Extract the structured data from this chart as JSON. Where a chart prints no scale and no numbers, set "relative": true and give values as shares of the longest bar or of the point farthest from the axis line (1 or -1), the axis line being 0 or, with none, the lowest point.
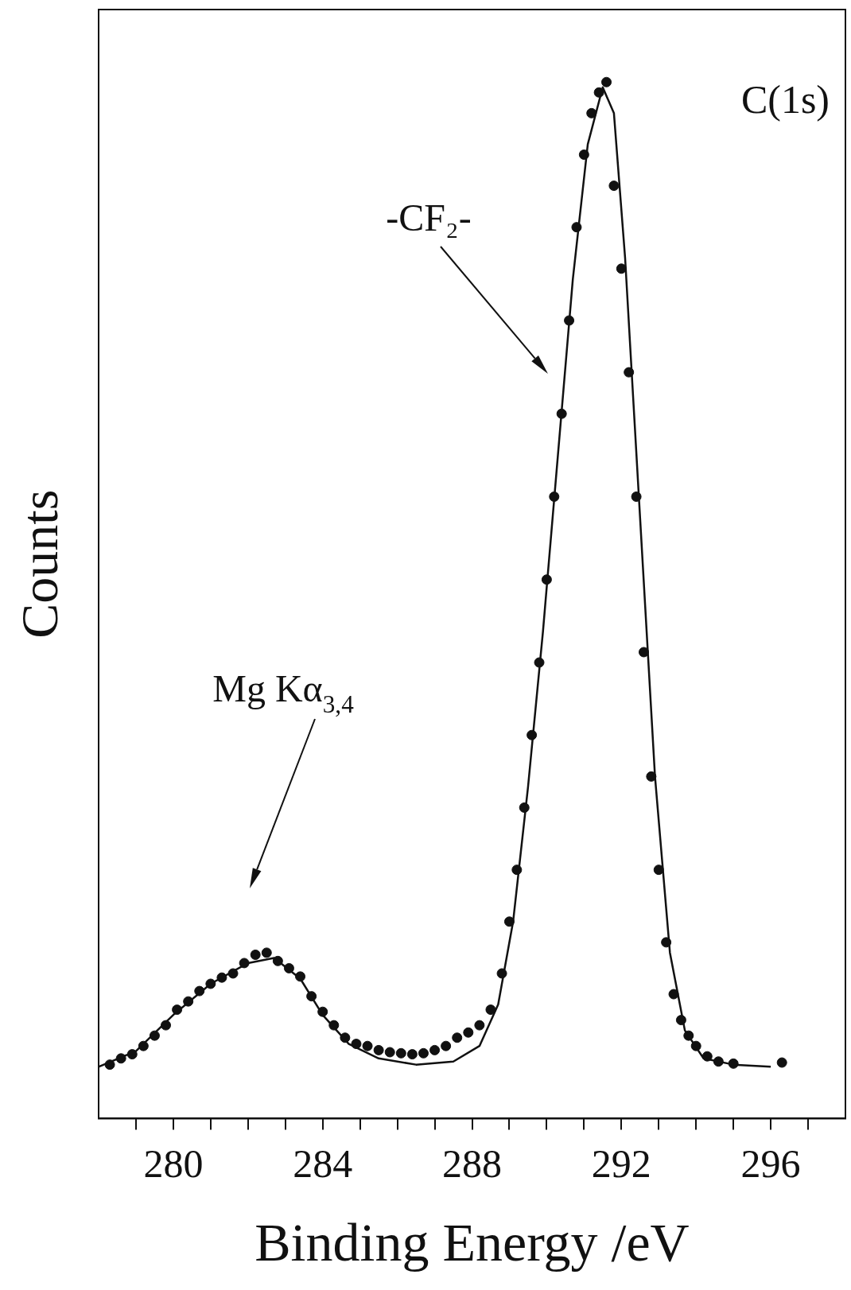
{
  "chart_data": {
    "type": "scatter",
    "relative": true,
    "xlabel": "Binding Energy /eV",
    "ylabel": "Counts",
    "xlim": [
      278,
      298
    ],
    "xticks": [
      {
        "value": 279,
        "label": null
      },
      280,
      {
        "value": 281,
        "label": null
      },
      {
        "value": 282,
        "label": null
      },
      {
        "value": 283,
        "label": null
      },
      284,
      {
        "value": 285,
        "label": null
      },
      {
        "value": 286,
        "label": null
      },
      {
        "value": 287,
        "label": null
      },
      288,
      {
        "value": 289,
        "label": null
      },
      {
        "value": 290,
        "label": null
      },
      {
        "value": 291,
        "label": null
      },
      292,
      {
        "value": 293,
        "label": null
      },
      {
        "value": 294,
        "label": null
      },
      {
        "value": 295,
        "label": null
      },
      296,
      {
        "value": 297,
        "label": null
      }
    ],
    "annotations": [
      "C(1s)",
      "-CF₂-",
      "Mg Kα$_{3,4}$"
    ],
    "series": [
      {
        "marker": "circle",
        "color": "#111111",
        "x": [
          278.3,
          278.6,
          278.9,
          279.2,
          279.5,
          279.8,
          280.1,
          280.4,
          280.7,
          281.0,
          281.3,
          281.6,
          281.9,
          282.2,
          282.5,
          282.8,
          283.1,
          283.4,
          283.7,
          284.0,
          284.3,
          284.6,
          284.9,
          285.2,
          285.5,
          285.8,
          286.1,
          286.4,
          286.7,
          287.0,
          287.3,
          287.6,
          287.9,
          288.2,
          288.5,
          288.8,
          289.0,
          289.2,
          289.4,
          289.6,
          289.8,
          290.0,
          290.2,
          290.4,
          290.6,
          290.8,
          291.0,
          291.2,
          291.4,
          291.6,
          291.8,
          292.0,
          292.2,
          292.4,
          292.6,
          292.8,
          293.0,
          293.2,
          293.4,
          293.6,
          293.8,
          294.0,
          294.3,
          294.6,
          295.0,
          296.3
        ],
        "values": [
          0.052,
          0.058,
          0.062,
          0.07,
          0.08,
          0.09,
          0.105,
          0.113,
          0.123,
          0.13,
          0.136,
          0.14,
          0.15,
          0.158,
          0.16,
          0.152,
          0.145,
          0.137,
          0.118,
          0.103,
          0.09,
          0.078,
          0.072,
          0.07,
          0.066,
          0.064,
          0.063,
          0.062,
          0.063,
          0.066,
          0.07,
          0.078,
          0.083,
          0.09,
          0.105,
          0.14,
          0.19,
          0.24,
          0.3,
          0.37,
          0.44,
          0.52,
          0.6,
          0.68,
          0.77,
          0.86,
          0.93,
          0.97,
          0.99,
          1.0,
          0.9,
          0.82,
          0.72,
          0.6,
          0.45,
          0.33,
          0.24,
          0.17,
          0.12,
          0.095,
          0.08,
          0.07,
          0.06,
          0.055,
          0.053,
          0.054
        ]
      },
      {
        "type": "line",
        "marker": "none",
        "color": "#111111",
        "x": [
          278.0,
          279.0,
          280.0,
          281.0,
          282.0,
          282.7,
          283.4,
          284.0,
          284.7,
          285.5,
          286.5,
          287.5,
          288.2,
          288.7,
          289.1,
          289.5,
          289.9,
          290.3,
          290.7,
          291.1,
          291.5,
          291.8,
          292.1,
          292.5,
          292.9,
          293.3,
          293.7,
          294.2,
          295.0,
          296.0
        ],
        "values": [
          0.05,
          0.065,
          0.1,
          0.13,
          0.15,
          0.155,
          0.135,
          0.1,
          0.072,
          0.058,
          0.052,
          0.055,
          0.07,
          0.11,
          0.19,
          0.32,
          0.47,
          0.64,
          0.81,
          0.94,
          0.995,
          0.97,
          0.83,
          0.58,
          0.33,
          0.16,
          0.085,
          0.058,
          0.052,
          0.05
        ]
      }
    ]
  }
}
